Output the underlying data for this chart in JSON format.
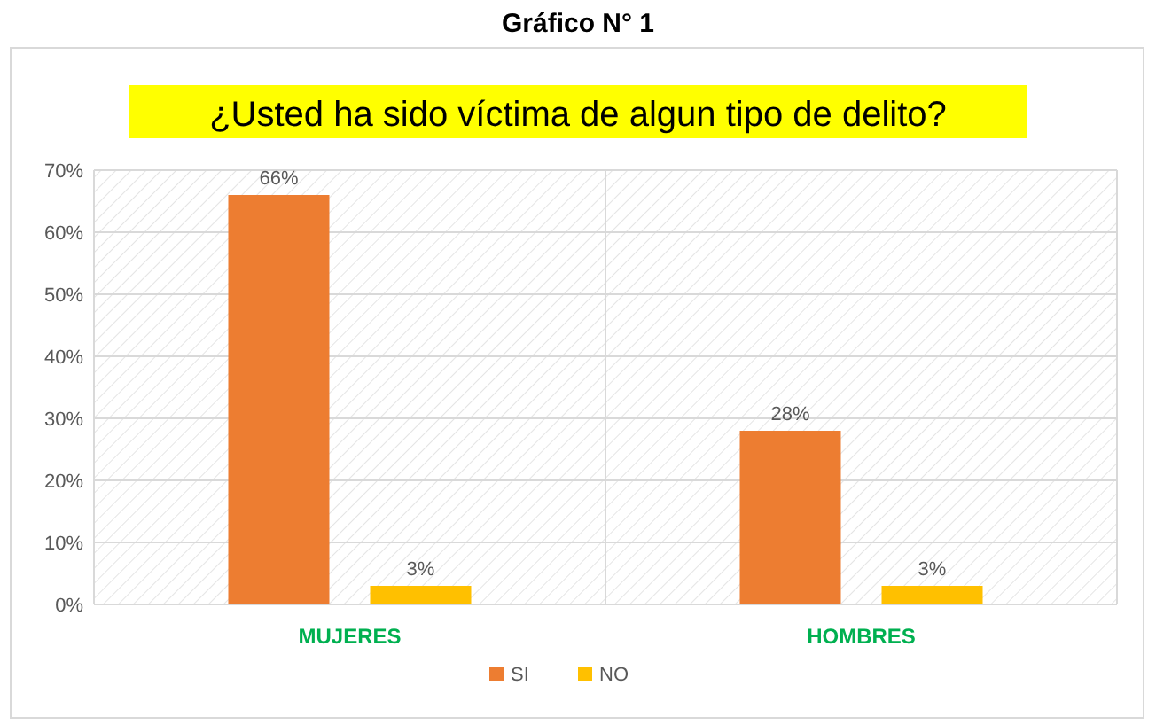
{
  "chart_data": {
    "type": "bar",
    "title": "Gráfico N° 1",
    "subtitle": "¿Usted ha sido víctima de algun tipo de delito?",
    "categories": [
      "MUJERES",
      "HOMBRES"
    ],
    "series": [
      {
        "name": "SI",
        "color": "#ed7d31",
        "values": [
          66,
          28
        ],
        "value_labels": [
          "66%",
          "28%"
        ]
      },
      {
        "name": "NO",
        "color": "#ffc000",
        "values": [
          3,
          3
        ],
        "value_labels": [
          "3%",
          "3%"
        ]
      }
    ],
    "ylim": [
      0,
      70
    ],
    "yticks": [
      {
        "value": 0,
        "label": "0%"
      },
      {
        "value": 10,
        "label": "10%"
      },
      {
        "value": 20,
        "label": "20%"
      },
      {
        "value": 30,
        "label": "30%"
      },
      {
        "value": 40,
        "label": "40%"
      },
      {
        "value": 50,
        "label": "50%"
      },
      {
        "value": 60,
        "label": "60%"
      },
      {
        "value": 70,
        "label": "70%"
      }
    ],
    "grid": true,
    "legend": "bottom"
  }
}
